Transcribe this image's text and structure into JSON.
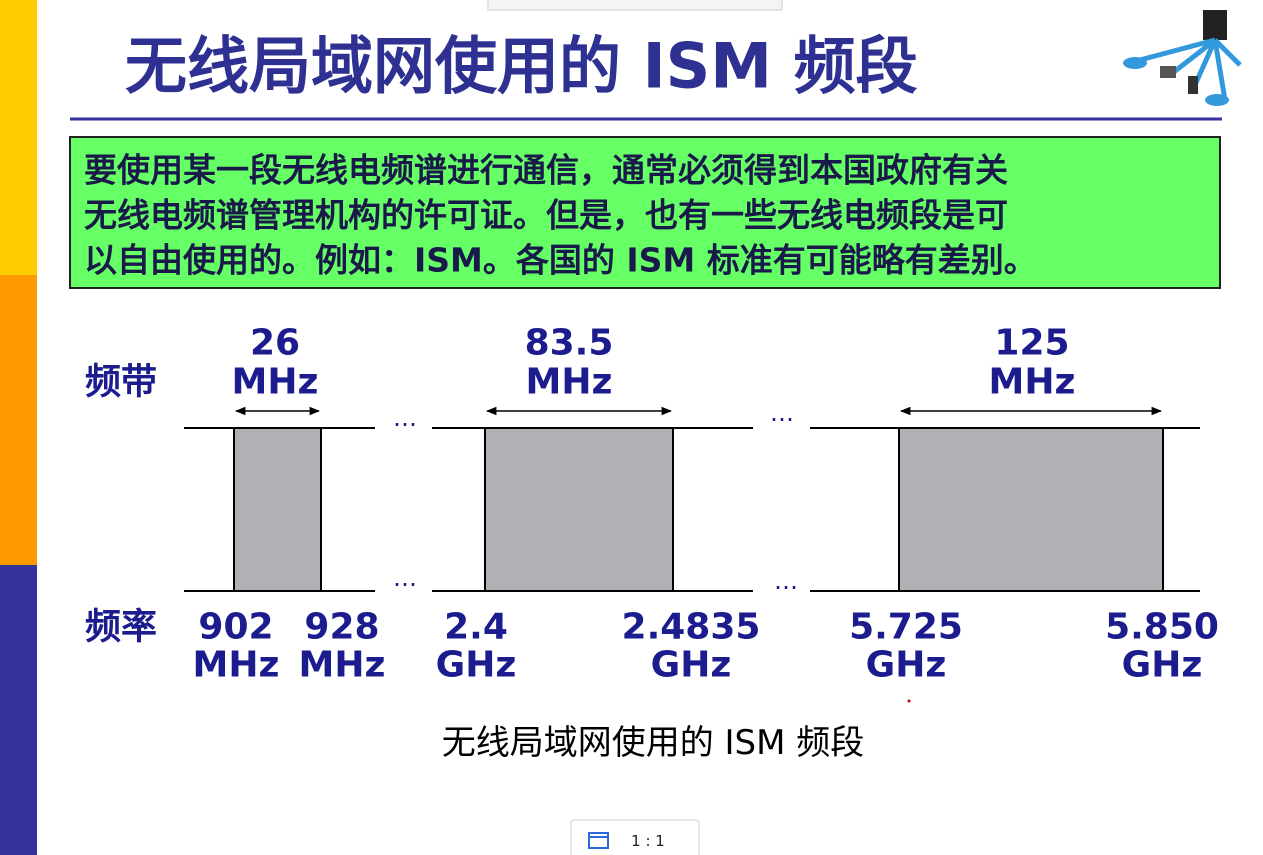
{
  "title": "无线局域网使用的 ISM 频段",
  "note": [
    "要使用某一段无线电频谱进行通信，通常必须得到本国政府有关",
    "无线电频谱管理机构的许可证。但是，也有一些无线电频段是可",
    "以自由使用的。例如：ISM。各国的 ISM 标准有可能略有差别。"
  ],
  "diagram": {
    "band_label": "频带",
    "freq_label": "频率",
    "gap_mark": "…",
    "bands": [
      {
        "width": [
          "26",
          "MHz"
        ],
        "from": [
          "902",
          "MHz"
        ],
        "to": [
          "928",
          "MHz"
        ]
      },
      {
        "width": [
          "83.5",
          "MHz"
        ],
        "from": [
          "2.4",
          "GHz"
        ],
        "to": [
          "2.4835",
          "GHz"
        ]
      },
      {
        "width": [
          "125",
          "MHz"
        ],
        "from": [
          "5.725",
          "GHz"
        ],
        "to": [
          "5.850",
          "GHz"
        ]
      }
    ],
    "caption": "无线局域网使用的 ISM 频段"
  },
  "viewer": {
    "zoom": "1 : 1"
  }
}
